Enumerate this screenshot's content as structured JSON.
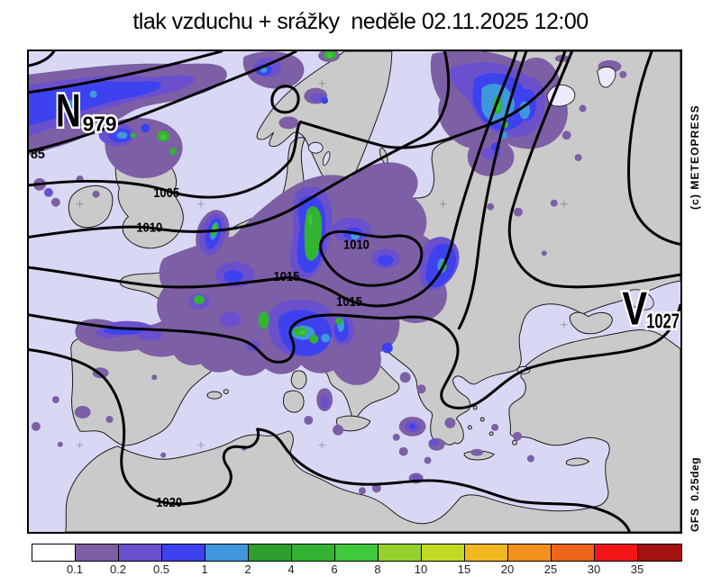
{
  "title": "tlak vzduchu + srážky  neděle 02.11.2025 12:00",
  "watermarks": {
    "copyright": "(c) METEOPRESS",
    "model": "GFS  0.25deg"
  },
  "pressure_centers": {
    "low": {
      "symbol": "N",
      "value": "979"
    },
    "high": {
      "symbol": "V",
      "value": "1027"
    }
  },
  "isobar_labels": [
    "85",
    "1005",
    "1010",
    "1010",
    "1015",
    "1015",
    "1020"
  ],
  "legend": {
    "values": [
      "0.1",
      "0.2",
      "0.5",
      "1",
      "2",
      "4",
      "6",
      "8",
      "10",
      "15",
      "20",
      "25",
      "30",
      "35"
    ],
    "colors": [
      "#ffffff",
      "#7d5fa5",
      "#6a50cd",
      "#3e42ee",
      "#3f97de",
      "#2e9e2e",
      "#32b432",
      "#3fc93a",
      "#96d22e",
      "#c3da24",
      "#f0b81e",
      "#f2921c",
      "#ee6418",
      "#f01616",
      "#a31111"
    ]
  },
  "map_colors": {
    "sea": "#d8d8f5",
    "land": "#cacaca",
    "coastline": "#1b1b1b",
    "isobar": "#000000"
  }
}
